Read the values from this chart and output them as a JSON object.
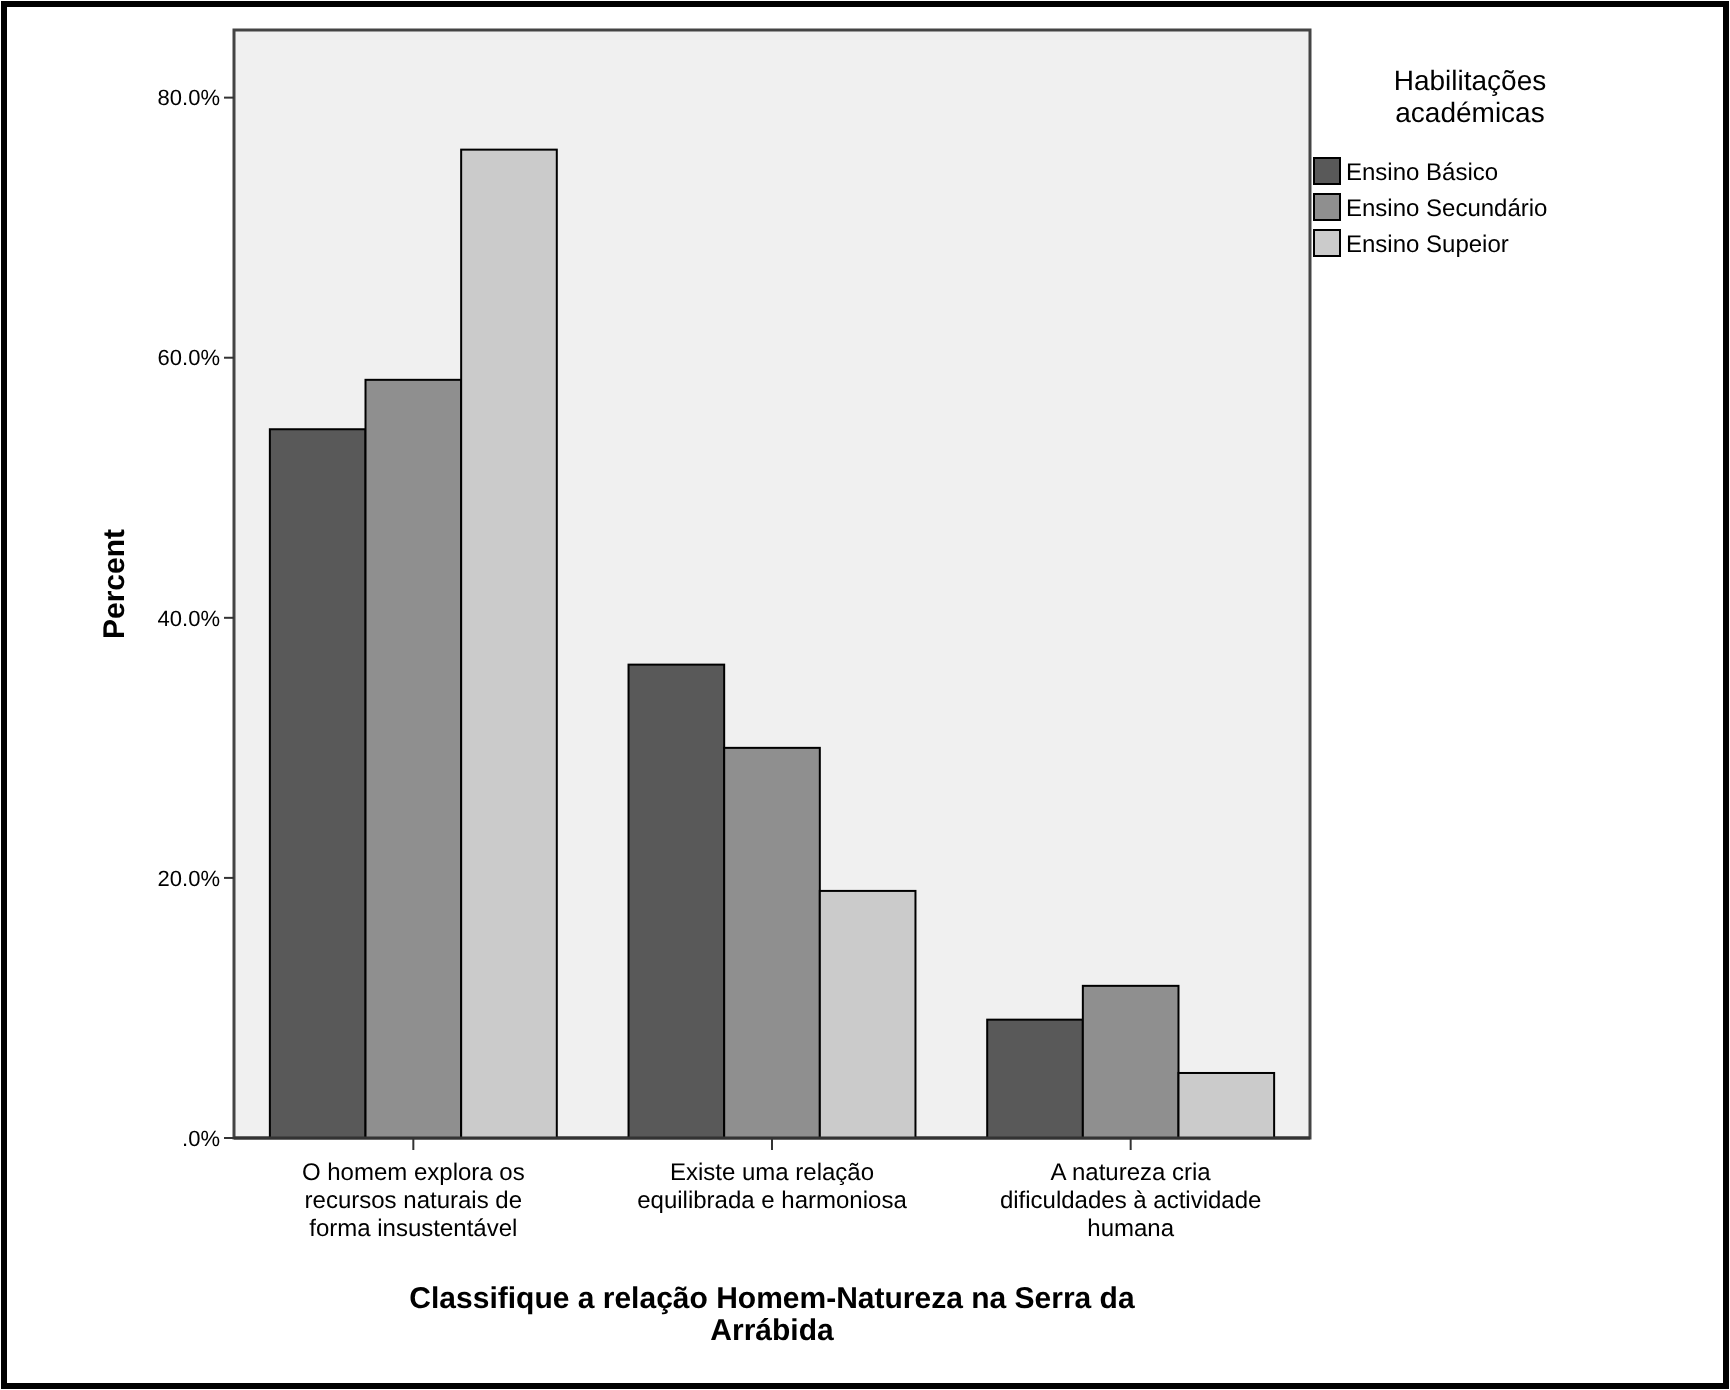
{
  "chart_data": {
    "type": "bar",
    "xlabel": "Classifique a relação Homem-Natureza na Serra da Arrábida",
    "ylabel": "Percent",
    "legend_title": "Habilitações académicas",
    "legend": "top right",
    "grid": false,
    "categories": [
      "O homem explora os recursos naturais de forma insustentável",
      "Existe uma relação equilibrada e harmoniosa",
      "A natureza cria dificuldades à actividade humana"
    ],
    "series": [
      {
        "name": "Ensino Básico",
        "color": "#595959",
        "values": [
          54.5,
          36.4,
          9.1
        ]
      },
      {
        "name": "Ensino Secundário",
        "color": "#8f8f8f",
        "values": [
          58.3,
          30.0,
          11.7
        ]
      },
      {
        "name": "Ensino Supeior",
        "color": "#cbcbcb",
        "values": [
          76.0,
          19.0,
          5.0
        ]
      }
    ],
    "ylim": [
      0,
      85.2
    ],
    "yticks": [
      {
        "value": 0,
        "label": ".0%"
      },
      {
        "value": 20,
        "label": "20.0%"
      },
      {
        "value": 40,
        "label": "40.0%"
      },
      {
        "value": 60,
        "label": "60.0%"
      },
      {
        "value": 80,
        "label": "80.0%"
      }
    ]
  }
}
